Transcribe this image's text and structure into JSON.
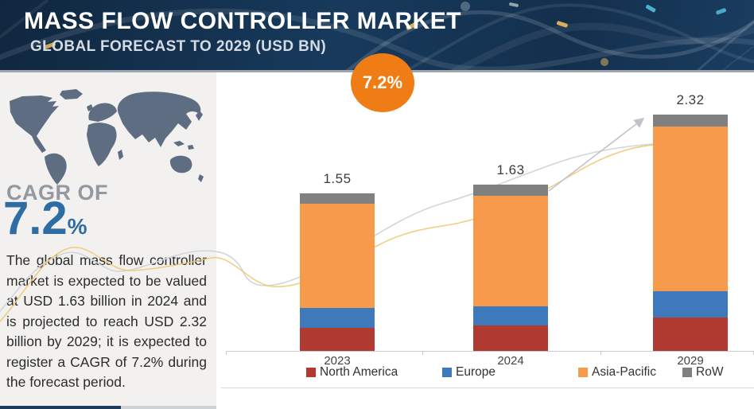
{
  "header": {
    "title": "MASS FLOW CONTROLLER MARKET",
    "subtitle": "GLOBAL FORECAST TO 2029 (USD BN)",
    "bg_color": "#152f4e"
  },
  "sidebar": {
    "cagr_prefix": "CAGR OF",
    "cagr_value": "7.2",
    "cagr_percent_sign": "%",
    "cagr_color": "#2e6da4",
    "description": "The global mass flow controller market is expected to be valued at USD 1.63 billion in 2024 and is projected to reach USD 2.32 billion by 2029; it is expected to register a CAGR of 7.2% during the forecast period.",
    "bg_color": "#f2f1ef",
    "map_color": "#5e6d81"
  },
  "chart_data": {
    "type": "bar",
    "stacked": true,
    "title": "",
    "unit": "USD BN",
    "categories": [
      "2023",
      "2024",
      "2029"
    ],
    "series": [
      {
        "name": "North America",
        "color": "#b03a30",
        "values": [
          0.23,
          0.25,
          0.33
        ]
      },
      {
        "name": "Europe",
        "color": "#3d79bb",
        "values": [
          0.19,
          0.19,
          0.26
        ]
      },
      {
        "name": "Asia-Pacific",
        "color": "#f89a4b",
        "values": [
          1.03,
          1.08,
          1.61
        ]
      },
      {
        "name": "RoW",
        "color": "#808080",
        "values": [
          0.1,
          0.11,
          0.12
        ]
      }
    ],
    "totals": [
      1.55,
      1.63,
      2.32
    ],
    "total_labels": [
      "1.55",
      "1.63",
      "2.32"
    ],
    "growth_badge": {
      "label": "7.2%",
      "color": "#f07c15"
    },
    "legend_position": "bottom",
    "gridlines": false,
    "ylim": [
      0,
      2.6
    ],
    "axis_line_color": "#c9cdd1"
  }
}
